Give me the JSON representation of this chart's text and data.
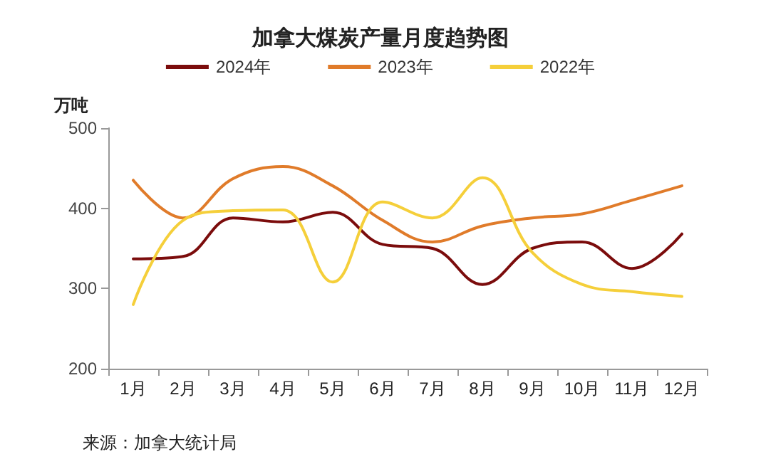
{
  "chart_data": {
    "type": "line",
    "title": "加拿大煤炭产量月度趋势图",
    "ylabel": "万吨",
    "categories": [
      "1月",
      "2月",
      "3月",
      "4月",
      "5月",
      "6月",
      "7月",
      "8月",
      "9月",
      "10月",
      "11月",
      "12月"
    ],
    "series": [
      {
        "name": "2024年",
        "color": "#7b0c0c",
        "values": [
          337,
          340,
          388,
          383,
          395,
          355,
          350,
          305,
          350,
          358,
          325,
          368
        ]
      },
      {
        "name": "2023年",
        "color": "#e07b2a",
        "values": [
          435,
          388,
          437,
          452,
          428,
          385,
          358,
          378,
          388,
          393,
          410,
          428
        ]
      },
      {
        "name": "2022年",
        "color": "#f5cf3a",
        "values": [
          280,
          385,
          397,
          398,
          308,
          408,
          388,
          438,
          345,
          305,
          296,
          290
        ]
      }
    ],
    "ylim": [
      200,
      500
    ],
    "yticks": [
      200,
      300,
      400,
      500
    ],
    "grid": false,
    "legend": "top",
    "marker": "none",
    "line_style": "solid",
    "annotations": [
      "来源：加拿大统计局"
    ]
  }
}
